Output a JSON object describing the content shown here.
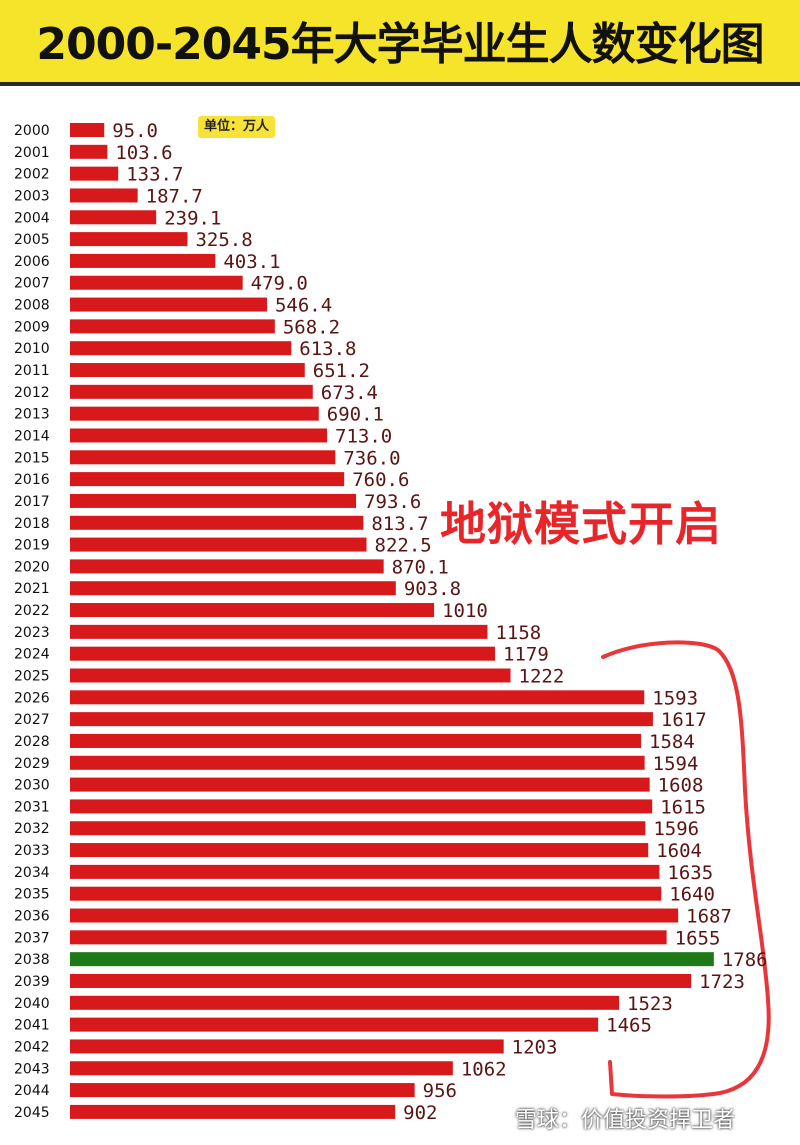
{
  "title": "2000-2045年大学毕业生人数变化图",
  "unit_label": "单位：万人",
  "annotation": "地狱模式开启",
  "watermark": "雪球：价值投资捍卫者",
  "colors": {
    "bar": "#d8191b",
    "highlight": "#1e7a16",
    "label": "#5a1414",
    "title_bg": "#f5e42a"
  },
  "chart_data": {
    "type": "bar",
    "orientation": "horizontal",
    "categories": [
      "2000",
      "2001",
      "2002",
      "2003",
      "2004",
      "2005",
      "2006",
      "2007",
      "2008",
      "2009",
      "2010",
      "2011",
      "2012",
      "2013",
      "2014",
      "2015",
      "2016",
      "2017",
      "2018",
      "2019",
      "2020",
      "2021",
      "2022",
      "2023",
      "2024",
      "2025",
      "2026",
      "2027",
      "2028",
      "2029",
      "2030",
      "2031",
      "2032",
      "2033",
      "2034",
      "2035",
      "2036",
      "2037",
      "2038",
      "2039",
      "2040",
      "2041",
      "2042",
      "2043",
      "2044",
      "2045"
    ],
    "values": [
      95.0,
      103.6,
      133.7,
      187.7,
      239.1,
      325.8,
      403.1,
      479.0,
      546.4,
      568.2,
      613.8,
      651.2,
      673.4,
      690.1,
      713.0,
      736.0,
      760.6,
      793.6,
      813.7,
      822.5,
      870.1,
      903.8,
      1010,
      1158,
      1179,
      1222,
      1593,
      1617,
      1584,
      1594,
      1608,
      1615,
      1596,
      1604,
      1635,
      1640,
      1687,
      1655,
      1786,
      1723,
      1523,
      1465,
      1203,
      1062,
      956,
      902
    ],
    "value_labels": [
      "95.0",
      "103.6",
      "133.7",
      "187.7",
      "239.1",
      "325.8",
      "403.1",
      "479.0",
      "546.4",
      "568.2",
      "613.8",
      "651.2",
      "673.4",
      "690.1",
      "713.0",
      "736.0",
      "760.6",
      "793.6",
      "813.7",
      "822.5",
      "870.1",
      "903.8",
      "1010",
      "1158",
      "1179",
      "1222",
      "1593",
      "1617",
      "1584",
      "1594",
      "1608",
      "1615",
      "1596",
      "1604",
      "1635",
      "1640",
      "1687",
      "1655",
      "1786",
      "1723",
      "1523",
      "1465",
      "1203",
      "1062",
      "956",
      "902"
    ],
    "highlight_category": "2038",
    "title": "2000-2045年大学毕业生人数变化图",
    "xlabel": "",
    "ylabel": "",
    "grid": false,
    "legend": false
  }
}
